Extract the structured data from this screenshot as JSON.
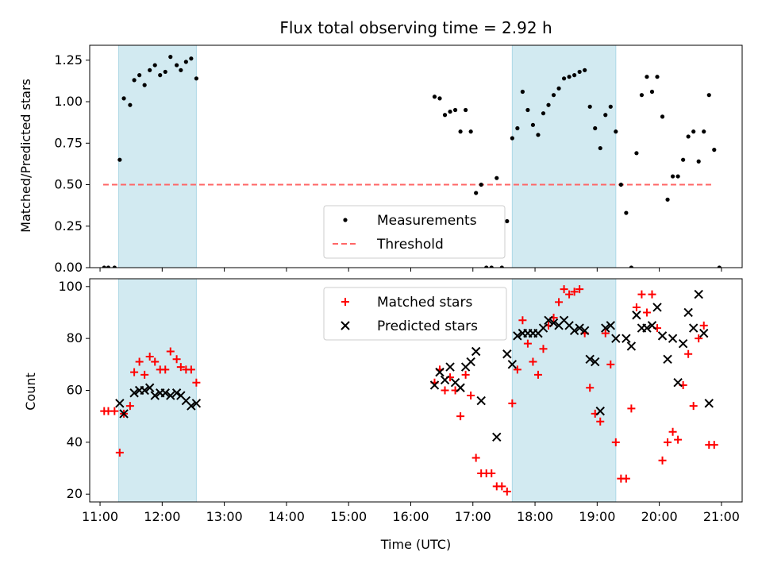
{
  "figure": {
    "title": "Flux total observing time = 2.92 h"
  },
  "colors": {
    "band": "#add8e6",
    "threshold": "#ff6666",
    "matched": "#ff0000",
    "predicted": "#000000",
    "measurement": "#000000"
  },
  "chart_data": [
    {
      "type": "scatter",
      "title": "Flux total observing time = 2.92 h",
      "xlabel": "",
      "ylabel": "Matched/Predicted stars",
      "x_unit": "hours UTC",
      "xlim": [
        "10:50",
        "21:20"
      ],
      "ylim": [
        0,
        1.34
      ],
      "yticks": [
        "0.00",
        "0.25",
        "0.50",
        "0.75",
        "1.00",
        "1.25"
      ],
      "ytick_values": [
        0,
        0.25,
        0.5,
        0.75,
        1.0,
        1.25
      ],
      "shaded_intervals": [
        [
          "11:18",
          "12:33"
        ],
        [
          "17:38",
          "19:18"
        ]
      ],
      "legend": {
        "placement": "lower center",
        "entries": [
          "Measurements",
          "Threshold"
        ]
      },
      "threshold": {
        "name": "Threshold",
        "y": 0.5,
        "x_range": [
          "11:03",
          "20:53"
        ]
      },
      "series": [
        {
          "name": "Measurements",
          "marker": "dot",
          "points": [
            [
              "11:04",
              0
            ],
            [
              "11:08",
              0
            ],
            [
              "11:14",
              0
            ],
            [
              "11:19",
              0.65
            ],
            [
              "11:23",
              1.02
            ],
            [
              "11:29",
              0.98
            ],
            [
              "11:33",
              1.13
            ],
            [
              "11:38",
              1.16
            ],
            [
              "11:43",
              1.1
            ],
            [
              "11:48",
              1.19
            ],
            [
              "11:53",
              1.22
            ],
            [
              "11:58",
              1.16
            ],
            [
              "12:03",
              1.18
            ],
            [
              "12:08",
              1.27
            ],
            [
              "12:14",
              1.22
            ],
            [
              "12:18",
              1.19
            ],
            [
              "12:23",
              1.24
            ],
            [
              "12:28",
              1.26
            ],
            [
              "12:33",
              1.14
            ],
            [
              "16:23",
              1.03
            ],
            [
              "16:28",
              1.02
            ],
            [
              "16:33",
              0.92
            ],
            [
              "16:38",
              0.94
            ],
            [
              "16:43",
              0.95
            ],
            [
              "16:48",
              0.82
            ],
            [
              "16:53",
              0.95
            ],
            [
              "16:58",
              0.82
            ],
            [
              "17:03",
              0.45
            ],
            [
              "17:08",
              0.5
            ],
            [
              "17:13",
              0
            ],
            [
              "17:18",
              0
            ],
            [
              "17:23",
              0.54
            ],
            [
              "17:28",
              0
            ],
            [
              "17:33",
              0.28
            ],
            [
              "17:38",
              0.78
            ],
            [
              "17:43",
              0.84
            ],
            [
              "17:48",
              1.06
            ],
            [
              "17:53",
              0.95
            ],
            [
              "17:58",
              0.86
            ],
            [
              "18:03",
              0.8
            ],
            [
              "18:08",
              0.93
            ],
            [
              "18:13",
              0.98
            ],
            [
              "18:18",
              1.04
            ],
            [
              "18:23",
              1.08
            ],
            [
              "18:28",
              1.14
            ],
            [
              "18:33",
              1.15
            ],
            [
              "18:38",
              1.16
            ],
            [
              "18:43",
              1.18
            ],
            [
              "18:48",
              1.19
            ],
            [
              "18:53",
              0.97
            ],
            [
              "18:58",
              0.84
            ],
            [
              "19:03",
              0.72
            ],
            [
              "19:08",
              0.92
            ],
            [
              "19:13",
              0.97
            ],
            [
              "19:18",
              0.82
            ],
            [
              "19:23",
              0.5
            ],
            [
              "19:28",
              0.33
            ],
            [
              "19:33",
              0
            ],
            [
              "19:38",
              0.69
            ],
            [
              "19:43",
              1.04
            ],
            [
              "19:48",
              1.15
            ],
            [
              "19:53",
              1.06
            ],
            [
              "19:58",
              1.15
            ],
            [
              "20:03",
              0.91
            ],
            [
              "20:08",
              0.41
            ],
            [
              "20:13",
              0.55
            ],
            [
              "20:18",
              0.55
            ],
            [
              "20:23",
              0.65
            ],
            [
              "20:28",
              0.79
            ],
            [
              "20:33",
              0.82
            ],
            [
              "20:38",
              0.64
            ],
            [
              "20:43",
              0.82
            ],
            [
              "20:48",
              1.04
            ],
            [
              "20:53",
              0.71
            ],
            [
              "20:58",
              0
            ]
          ]
        }
      ]
    },
    {
      "type": "scatter",
      "title": "",
      "xlabel": "Time (UTC)",
      "ylabel": "Count",
      "x_unit": "hours UTC",
      "xlim": [
        "10:50",
        "21:20"
      ],
      "ylim": [
        17,
        103
      ],
      "xticks": [
        "11:00",
        "12:00",
        "13:00",
        "14:00",
        "15:00",
        "16:00",
        "17:00",
        "18:00",
        "19:00",
        "20:00",
        "21:00"
      ],
      "yticks": [
        "20",
        "40",
        "60",
        "80",
        "100"
      ],
      "ytick_values": [
        20,
        40,
        60,
        80,
        100
      ],
      "shaded_intervals": [
        [
          "11:18",
          "12:33"
        ],
        [
          "17:38",
          "19:18"
        ]
      ],
      "legend": {
        "placement": "upper center",
        "entries": [
          "Matched stars",
          "Predicted stars"
        ]
      },
      "series": [
        {
          "name": "Matched stars",
          "marker": "plus",
          "points": [
            [
              "11:04",
              52
            ],
            [
              "11:08",
              52
            ],
            [
              "11:14",
              52
            ],
            [
              "11:19",
              36
            ],
            [
              "11:23",
              51
            ],
            [
              "11:29",
              54
            ],
            [
              "11:33",
              67
            ],
            [
              "11:38",
              71
            ],
            [
              "11:43",
              66
            ],
            [
              "11:48",
              73
            ],
            [
              "11:53",
              71
            ],
            [
              "11:58",
              68
            ],
            [
              "12:03",
              68
            ],
            [
              "12:08",
              75
            ],
            [
              "12:14",
              72
            ],
            [
              "12:18",
              69
            ],
            [
              "12:23",
              68
            ],
            [
              "12:28",
              68
            ],
            [
              "12:33",
              63
            ],
            [
              "16:23",
              63
            ],
            [
              "16:28",
              68
            ],
            [
              "16:33",
              60
            ],
            [
              "16:38",
              65
            ],
            [
              "16:43",
              60
            ],
            [
              "16:48",
              50
            ],
            [
              "16:53",
              66
            ],
            [
              "16:58",
              58
            ],
            [
              "17:03",
              34
            ],
            [
              "17:08",
              28
            ],
            [
              "17:13",
              28
            ],
            [
              "17:18",
              28
            ],
            [
              "17:23",
              23
            ],
            [
              "17:28",
              23
            ],
            [
              "17:33",
              21
            ],
            [
              "17:38",
              55
            ],
            [
              "17:43",
              68
            ],
            [
              "17:48",
              87
            ],
            [
              "17:53",
              78
            ],
            [
              "17:58",
              71
            ],
            [
              "18:03",
              66
            ],
            [
              "18:08",
              76
            ],
            [
              "18:13",
              85
            ],
            [
              "18:18",
              88
            ],
            [
              "18:23",
              94
            ],
            [
              "18:28",
              99
            ],
            [
              "18:33",
              97
            ],
            [
              "18:38",
              98
            ],
            [
              "18:43",
              99
            ],
            [
              "18:48",
              82
            ],
            [
              "18:53",
              61
            ],
            [
              "18:58",
              51
            ],
            [
              "19:03",
              48
            ],
            [
              "19:08",
              82
            ],
            [
              "19:13",
              70
            ],
            [
              "19:18",
              40
            ],
            [
              "19:23",
              26
            ],
            [
              "19:28",
              26
            ],
            [
              "19:33",
              53
            ],
            [
              "19:38",
              92
            ],
            [
              "19:43",
              97
            ],
            [
              "19:48",
              90
            ],
            [
              "19:53",
              97
            ],
            [
              "19:58",
              84
            ],
            [
              "20:03",
              33
            ],
            [
              "20:08",
              40
            ],
            [
              "20:13",
              44
            ],
            [
              "20:18",
              41
            ],
            [
              "20:23",
              62
            ],
            [
              "20:28",
              74
            ],
            [
              "20:33",
              54
            ],
            [
              "20:38",
              80
            ],
            [
              "20:43",
              85
            ],
            [
              "20:48",
              39
            ],
            [
              "20:53",
              39
            ]
          ]
        },
        {
          "name": "Predicted stars",
          "marker": "x",
          "points": [
            [
              "11:19",
              55
            ],
            [
              "11:23",
              51
            ],
            [
              "11:33",
              59
            ],
            [
              "11:38",
              60
            ],
            [
              "11:43",
              60
            ],
            [
              "11:48",
              61
            ],
            [
              "11:53",
              58
            ],
            [
              "11:58",
              59
            ],
            [
              "12:03",
              59
            ],
            [
              "12:08",
              58
            ],
            [
              "12:14",
              59
            ],
            [
              "12:18",
              58
            ],
            [
              "12:23",
              56
            ],
            [
              "12:28",
              54
            ],
            [
              "12:33",
              55
            ],
            [
              "16:23",
              62
            ],
            [
              "16:28",
              67
            ],
            [
              "16:33",
              64
            ],
            [
              "16:38",
              69
            ],
            [
              "16:43",
              63
            ],
            [
              "16:48",
              61
            ],
            [
              "16:53",
              69
            ],
            [
              "16:58",
              71
            ],
            [
              "17:03",
              75
            ],
            [
              "17:08",
              56
            ],
            [
              "17:23",
              42
            ],
            [
              "17:33",
              74
            ],
            [
              "17:38",
              70
            ],
            [
              "17:43",
              81
            ],
            [
              "17:48",
              82
            ],
            [
              "17:53",
              82
            ],
            [
              "17:58",
              82
            ],
            [
              "18:03",
              82
            ],
            [
              "18:08",
              84
            ],
            [
              "18:13",
              87
            ],
            [
              "18:18",
              86
            ],
            [
              "18:23",
              85
            ],
            [
              "18:28",
              87
            ],
            [
              "18:33",
              85
            ],
            [
              "18:38",
              83
            ],
            [
              "18:43",
              84
            ],
            [
              "18:48",
              83
            ],
            [
              "18:53",
              72
            ],
            [
              "18:58",
              71
            ],
            [
              "19:03",
              52
            ],
            [
              "19:08",
              84
            ],
            [
              "19:13",
              85
            ],
            [
              "19:18",
              80
            ],
            [
              "19:28",
              80
            ],
            [
              "19:33",
              77
            ],
            [
              "19:38",
              89
            ],
            [
              "19:43",
              84
            ],
            [
              "19:48",
              84
            ],
            [
              "19:53",
              85
            ],
            [
              "19:58",
              92
            ],
            [
              "20:03",
              81
            ],
            [
              "20:08",
              72
            ],
            [
              "20:13",
              80
            ],
            [
              "20:18",
              63
            ],
            [
              "20:23",
              78
            ],
            [
              "20:28",
              90
            ],
            [
              "20:33",
              84
            ],
            [
              "20:38",
              97
            ],
            [
              "20:43",
              82
            ],
            [
              "20:48",
              55
            ]
          ]
        }
      ]
    }
  ]
}
